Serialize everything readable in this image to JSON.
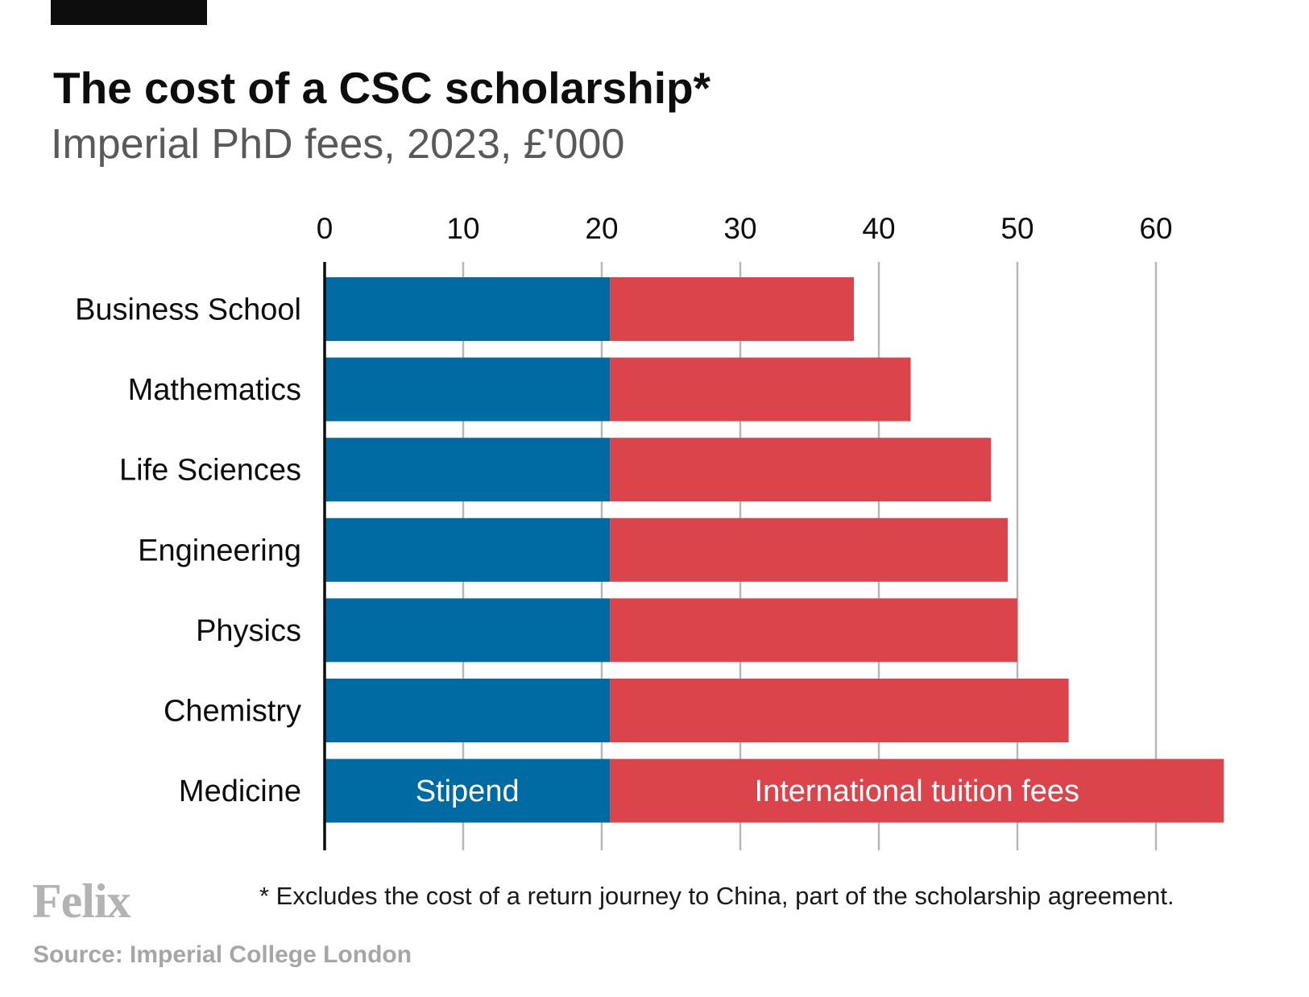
{
  "header": {
    "title": "The cost of a CSC scholarship*",
    "subtitle": "Imperial PhD fees, 2023, £'000"
  },
  "footer": {
    "logo": "Felix",
    "footnote": "* Excludes the cost of a return journey to China, part of the scholarship agreement.",
    "source": "Source: Imperial College London"
  },
  "colors": {
    "stipend": "#006ba2",
    "tuition": "#db444b",
    "gridline": "#b7b7b7",
    "axis": "#0d0d0d",
    "text": "#0d0d0d"
  },
  "chart_data": {
    "type": "bar",
    "orientation": "horizontal",
    "stacked": true,
    "title": "The cost of a CSC scholarship*",
    "subtitle": "Imperial PhD fees, 2023, £'000",
    "categories": [
      "Business School",
      "Mathematics",
      "Life Sciences",
      "Engineering",
      "Physics",
      "Chemistry",
      "Medicine"
    ],
    "series": [
      {
        "name": "Stipend",
        "color": "#006ba2",
        "values": [
          20.6,
          20.6,
          20.6,
          20.6,
          20.6,
          20.6,
          20.6
        ]
      },
      {
        "name": "International tuition fees",
        "color": "#db444b",
        "values": [
          17.6,
          21.7,
          27.5,
          28.7,
          29.4,
          33.1,
          44.3
        ]
      }
    ],
    "xlim": [
      0,
      65
    ],
    "xticks": [
      0,
      10,
      20,
      30,
      40,
      50,
      60
    ],
    "xtick_labels": [
      "0",
      "10",
      "20",
      "30",
      "40",
      "50",
      "60"
    ],
    "x_axis_position": "top",
    "grid": true,
    "legend": "inline labels inside the Medicine bar",
    "xlabel": "",
    "ylabel": ""
  }
}
